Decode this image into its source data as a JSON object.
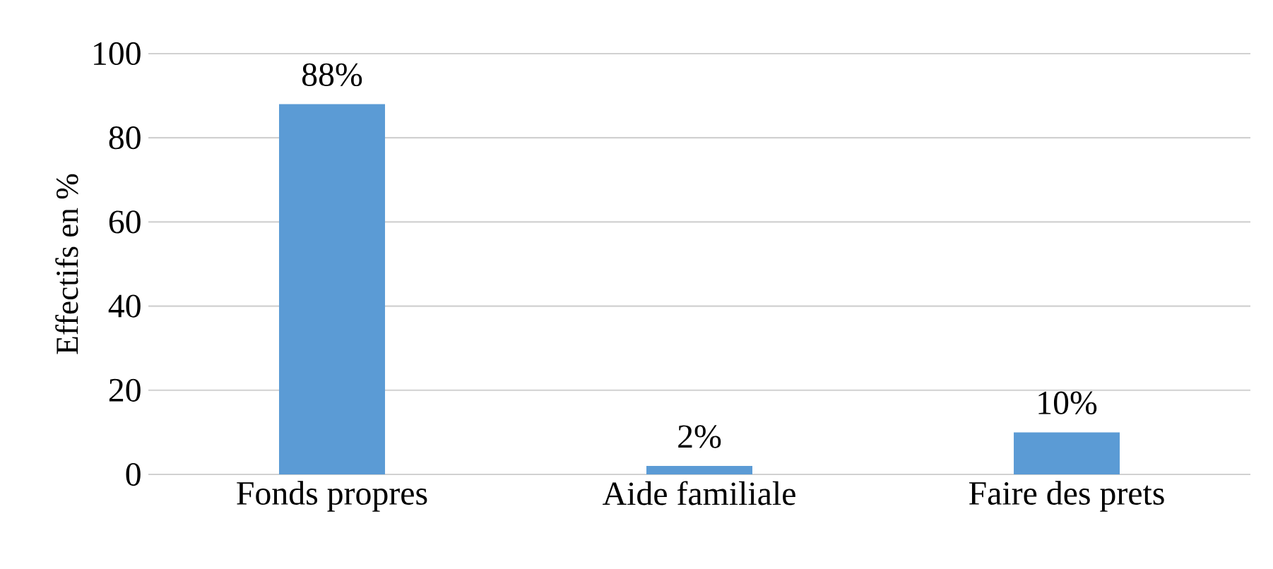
{
  "chart_data": {
    "type": "bar",
    "ylabel": "Effectifs en %",
    "categories": [
      "Fonds propres",
      "Aide familiale",
      "Faire des prets"
    ],
    "values": [
      88,
      2,
      10
    ],
    "value_labels": [
      "88%",
      "2%",
      "10%"
    ],
    "color": "#5b9bd5",
    "ylim": [
      0,
      100
    ],
    "yticks": [
      0,
      20,
      40,
      60,
      80,
      100
    ],
    "grid": "y"
  }
}
